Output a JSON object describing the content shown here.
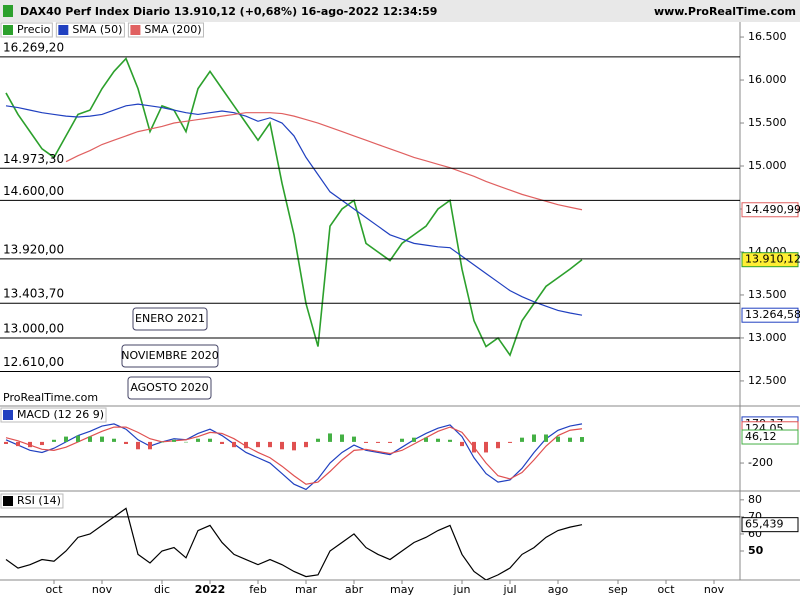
{
  "header": {
    "title": "DAX40 Perf Index Diario 13.910,12 (+0,68%) 16-ago-2022 12:34:59",
    "site": "www.ProRealTime.com"
  },
  "watermark": "ProRealTime.com",
  "chart_data": [
    {
      "type": "line",
      "categories": [
        null,
        null,
        null,
        null,
        "oct",
        null,
        null,
        null,
        "nov",
        null,
        null,
        null,
        null,
        "dic",
        null,
        null,
        null,
        "2022",
        null,
        null,
        null,
        "feb",
        null,
        null,
        null,
        "mar",
        null,
        null,
        null,
        "abr",
        null,
        null,
        null,
        "may",
        null,
        null,
        null,
        null,
        "jun",
        null,
        null,
        null,
        "jul",
        null,
        null,
        null,
        "ago",
        null,
        null,
        null,
        null,
        "sep",
        null,
        null,
        null,
        "oct",
        null,
        null,
        null,
        "nov",
        null,
        null
      ],
      "series": [
        {
          "name": "Precio",
          "color": "#2ca02c",
          "values": [
            15850,
            15600,
            15400,
            15200,
            15100,
            15350,
            15600,
            15650,
            15900,
            16100,
            16250,
            15900,
            15400,
            15700,
            15650,
            15400,
            15900,
            16100,
            15900,
            15700,
            15500,
            15300,
            15500,
            14800,
            14200,
            13400,
            12900,
            14300,
            14500,
            14600,
            14100,
            14000,
            13900,
            14100,
            14200,
            14300,
            14500,
            14600,
            13800,
            13200,
            12900,
            13000,
            12800,
            13200,
            13400,
            13600,
            13700,
            13800,
            13910.12,
            null,
            null,
            null,
            null,
            null,
            null,
            null,
            null,
            null,
            null,
            null,
            null,
            null
          ],
          "value_labels": [
            null,
            null,
            null,
            null,
            null,
            null,
            null,
            null,
            null,
            null,
            null,
            null,
            null,
            null,
            null,
            null,
            null,
            null,
            null,
            null,
            null,
            null,
            null,
            null,
            null,
            null,
            null,
            null,
            null,
            null,
            null,
            null,
            null,
            null,
            null,
            null,
            null,
            null,
            null,
            null,
            null,
            null,
            null,
            null,
            null,
            null,
            null,
            null,
            "13.910,12",
            null,
            null,
            null,
            null,
            null,
            null,
            null,
            null,
            null,
            null,
            null,
            null,
            null
          ],
          "label_fill": "#ffee33"
        },
        {
          "name": "SMA (50)",
          "color": "#2040c0",
          "values": [
            15700,
            15680,
            15650,
            15620,
            15600,
            15580,
            15570,
            15580,
            15600,
            15650,
            15700,
            15720,
            15700,
            15680,
            15650,
            15620,
            15600,
            15620,
            15640,
            15620,
            15580,
            15520,
            15560,
            15500,
            15350,
            15100,
            14900,
            14700,
            14600,
            14500,
            14400,
            14300,
            14200,
            14150,
            14100,
            14080,
            14060,
            14050,
            13950,
            13850,
            13750,
            13650,
            13550,
            13480,
            13420,
            13370,
            13320,
            13290,
            13264.58,
            null,
            null,
            null,
            null,
            null,
            null,
            null,
            null,
            null,
            null,
            null,
            null,
            null
          ],
          "value_labels": [
            null,
            null,
            null,
            null,
            null,
            null,
            null,
            null,
            null,
            null,
            null,
            null,
            null,
            null,
            null,
            null,
            null,
            null,
            null,
            null,
            null,
            null,
            null,
            null,
            null,
            null,
            null,
            null,
            null,
            null,
            null,
            null,
            null,
            null,
            null,
            null,
            null,
            null,
            null,
            null,
            null,
            null,
            null,
            null,
            null,
            null,
            null,
            null,
            "13.264,58",
            null,
            null,
            null,
            null,
            null,
            null,
            null,
            null,
            null,
            null,
            null,
            null,
            null
          ]
        },
        {
          "name": "SMA (200)",
          "color": "#e06060",
          "values": [
            null,
            null,
            null,
            null,
            null,
            15050,
            15120,
            15180,
            15250,
            15300,
            15350,
            15400,
            15430,
            15460,
            15500,
            15520,
            15540,
            15560,
            15580,
            15600,
            15620,
            15620,
            15620,
            15610,
            15580,
            15540,
            15500,
            15450,
            15400,
            15350,
            15300,
            15250,
            15200,
            15150,
            15100,
            15060,
            15020,
            14980,
            14930,
            14880,
            14820,
            14770,
            14720,
            14670,
            14630,
            14590,
            14550,
            14520,
            14490.99,
            null,
            null,
            null,
            null,
            null,
            null,
            null,
            null,
            null,
            null,
            null,
            null,
            null
          ],
          "value_labels": [
            null,
            null,
            null,
            null,
            null,
            null,
            null,
            null,
            null,
            null,
            null,
            null,
            null,
            null,
            null,
            null,
            null,
            null,
            null,
            null,
            null,
            null,
            null,
            null,
            null,
            null,
            null,
            null,
            null,
            null,
            null,
            null,
            null,
            null,
            null,
            null,
            null,
            null,
            null,
            null,
            null,
            null,
            null,
            null,
            null,
            null,
            null,
            null,
            "14.490,99",
            null,
            null,
            null,
            null,
            null,
            null,
            null,
            null,
            null,
            null,
            null,
            null,
            null
          ]
        }
      ],
      "ylim": [
        12220,
        16675
      ],
      "yticks": [
        {
          "value": 16500,
          "label": "16.500"
        },
        {
          "value": 16000,
          "label": "16.000"
        },
        {
          "value": 15500,
          "label": "15.500"
        },
        {
          "value": 15000,
          "label": "15.000"
        },
        {
          "value": 14500,
          "label": "14.500"
        },
        {
          "value": 14000,
          "label": "14.000"
        },
        {
          "value": 13500,
          "label": "13.500"
        },
        {
          "value": 13000,
          "label": "13.000"
        },
        {
          "value": 12500,
          "label": "12.500"
        }
      ],
      "levels": [
        {
          "value": 16269.2,
          "label": "16.269,20"
        },
        {
          "value": 14973.3,
          "label": "14.973,30"
        },
        {
          "value": 14600,
          "label": "14.600,00"
        },
        {
          "value": 13920,
          "label": "13.920,00"
        },
        {
          "value": 13403.7,
          "label": "13.403,70"
        },
        {
          "value": 13000,
          "label": "13.000,00"
        },
        {
          "value": 12610,
          "label": "12.610,00"
        }
      ],
      "annotations": [
        "ENERO 2021",
        "NOVIEMBRE 2020",
        "AGOSTO 2020"
      ]
    },
    {
      "type": "line",
      "series": [
        {
          "name": "MACD (12 26 9)",
          "color": "#2040c0",
          "values": [
            20,
            -30,
            -80,
            -100,
            -60,
            0,
            60,
            100,
            150,
            170,
            120,
            20,
            -40,
            0,
            30,
            20,
            80,
            120,
            60,
            -20,
            -100,
            -150,
            -200,
            -300,
            -400,
            -450,
            -350,
            -200,
            -100,
            -30,
            -80,
            -100,
            -120,
            -50,
            20,
            80,
            130,
            160,
            50,
            -150,
            -300,
            -380,
            -360,
            -250,
            -100,
            30,
            110,
            150,
            170.17,
            null,
            null,
            null,
            null,
            null,
            null,
            null,
            null,
            null,
            null,
            null,
            null,
            null
          ],
          "value_labels": [
            null,
            null,
            null,
            null,
            null,
            null,
            null,
            null,
            null,
            null,
            null,
            null,
            null,
            null,
            null,
            null,
            null,
            null,
            null,
            null,
            null,
            null,
            null,
            null,
            null,
            null,
            null,
            null,
            null,
            null,
            null,
            null,
            null,
            null,
            null,
            null,
            null,
            null,
            null,
            null,
            null,
            null,
            null,
            null,
            null,
            null,
            null,
            null,
            "170,17",
            null,
            null,
            null,
            null,
            null,
            null,
            null,
            null,
            null,
            null,
            null,
            null,
            null
          ]
        },
        {
          "color": "#e05050",
          "values": [
            40,
            10,
            -30,
            -70,
            -80,
            -50,
            0,
            50,
            100,
            140,
            140,
            90,
            30,
            0,
            10,
            20,
            50,
            90,
            80,
            30,
            -40,
            -100,
            -150,
            -230,
            -320,
            -400,
            -380,
            -280,
            -170,
            -80,
            -70,
            -90,
            -110,
            -80,
            -20,
            40,
            100,
            140,
            90,
            -50,
            -200,
            -320,
            -350,
            -290,
            -170,
            -40,
            60,
            110,
            124.05,
            null,
            null,
            null,
            null,
            null,
            null,
            null,
            null,
            null,
            null,
            null,
            null,
            null
          ],
          "value_labels": [
            null,
            null,
            null,
            null,
            null,
            null,
            null,
            null,
            null,
            null,
            null,
            null,
            null,
            null,
            null,
            null,
            null,
            null,
            null,
            null,
            null,
            null,
            null,
            null,
            null,
            null,
            null,
            null,
            null,
            null,
            null,
            null,
            null,
            null,
            null,
            null,
            null,
            null,
            null,
            null,
            null,
            null,
            null,
            null,
            null,
            null,
            null,
            null,
            "124,05",
            null,
            null,
            null,
            null,
            null,
            null,
            null,
            null,
            null,
            null,
            null,
            null,
            null
          ]
        },
        {
          "type": "bar",
          "color": "#44b044",
          "neg_color": "#e05050",
          "values": [
            -20,
            -40,
            -50,
            -30,
            20,
            50,
            60,
            50,
            50,
            30,
            -20,
            -70,
            -70,
            0,
            20,
            0,
            30,
            30,
            -20,
            -50,
            -60,
            -50,
            -50,
            -70,
            -80,
            -50,
            30,
            80,
            70,
            50,
            -10,
            -10,
            -10,
            30,
            40,
            40,
            30,
            20,
            -40,
            -100,
            -100,
            -60,
            -10,
            40,
            70,
            70,
            50,
            40,
            46.12,
            null,
            null,
            null,
            null,
            null,
            null,
            null,
            null,
            null,
            null,
            null,
            null,
            null
          ],
          "value_labels": [
            null,
            null,
            null,
            null,
            null,
            null,
            null,
            null,
            null,
            null,
            null,
            null,
            null,
            null,
            null,
            null,
            null,
            null,
            null,
            null,
            null,
            null,
            null,
            null,
            null,
            null,
            null,
            null,
            null,
            null,
            null,
            null,
            null,
            null,
            null,
            null,
            null,
            null,
            null,
            null,
            null,
            null,
            null,
            null,
            null,
            null,
            null,
            null,
            "46,12",
            null,
            null,
            null,
            null,
            null,
            null,
            null,
            null,
            null,
            null,
            null,
            null,
            null
          ]
        }
      ],
      "ylim": [
        -455,
        330
      ],
      "yticks": [
        -200
      ]
    },
    {
      "type": "line",
      "series": [
        {
          "name": "RSI (14)",
          "color": "#000000",
          "values": [
            45,
            40,
            42,
            45,
            44,
            50,
            58,
            60,
            65,
            70,
            75,
            48,
            43,
            50,
            52,
            46,
            62,
            65,
            55,
            48,
            45,
            42,
            45,
            42,
            38,
            35,
            36,
            50,
            55,
            60,
            52,
            48,
            45,
            50,
            55,
            58,
            62,
            65,
            48,
            38,
            33,
            36,
            40,
            48,
            52,
            58,
            62,
            64,
            65.439,
            null,
            null,
            null,
            null,
            null,
            null,
            null,
            null,
            null,
            null,
            null,
            null,
            null
          ],
          "value_labels": [
            null,
            null,
            null,
            null,
            null,
            null,
            null,
            null,
            null,
            null,
            null,
            null,
            null,
            null,
            null,
            null,
            null,
            null,
            null,
            null,
            null,
            null,
            null,
            null,
            null,
            null,
            null,
            null,
            null,
            null,
            null,
            null,
            null,
            null,
            null,
            null,
            null,
            null,
            null,
            null,
            null,
            null,
            null,
            null,
            null,
            null,
            null,
            null,
            "65,439",
            null,
            null,
            null,
            null,
            null,
            null,
            null,
            null,
            null,
            null,
            null,
            null,
            null
          ]
        }
      ],
      "ylim": [
        33,
        84
      ],
      "yticks": [
        50,
        60,
        70,
        80
      ],
      "hline": 70
    }
  ]
}
